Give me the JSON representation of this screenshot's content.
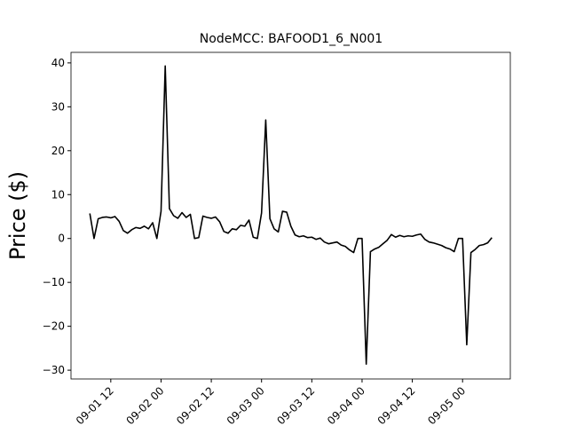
{
  "chart_data": {
    "type": "line",
    "title": "NodeMCC: BAFOOD1_6_N001",
    "ylabel": "Price ($)",
    "x": [
      "09-01 07",
      "09-01 08",
      "09-01 09",
      "09-01 10",
      "09-01 11",
      "09-01 12",
      "09-01 13",
      "09-01 14",
      "09-01 15",
      "09-01 16",
      "09-01 17",
      "09-01 18",
      "09-01 19",
      "09-01 20",
      "09-01 21",
      "09-01 22",
      "09-01 23",
      "09-02 00",
      "09-02 01",
      "09-02 02",
      "09-02 03",
      "09-02 04",
      "09-02 05",
      "09-02 06",
      "09-02 07",
      "09-02 08",
      "09-02 09",
      "09-02 10",
      "09-02 11",
      "09-02 12",
      "09-02 13",
      "09-02 14",
      "09-02 15",
      "09-02 16",
      "09-02 17",
      "09-02 18",
      "09-02 19",
      "09-02 20",
      "09-02 21",
      "09-02 22",
      "09-02 23",
      "09-03 00",
      "09-03 01",
      "09-03 02",
      "09-03 03",
      "09-03 04",
      "09-03 05",
      "09-03 06",
      "09-03 07",
      "09-03 08",
      "09-03 09",
      "09-03 10",
      "09-03 11",
      "09-03 12",
      "09-03 13",
      "09-03 14",
      "09-03 15",
      "09-03 16",
      "09-03 17",
      "09-03 18",
      "09-03 19",
      "09-03 20",
      "09-03 21",
      "09-03 22",
      "09-03 23",
      "09-04 00",
      "09-04 01",
      "09-04 02",
      "09-04 03",
      "09-04 04",
      "09-04 05",
      "09-04 06",
      "09-04 07",
      "09-04 08",
      "09-04 09",
      "09-04 10",
      "09-04 11",
      "09-04 12",
      "09-04 13",
      "09-04 14",
      "09-04 15",
      "09-04 16",
      "09-04 17",
      "09-04 18",
      "09-04 19",
      "09-04 20",
      "09-04 21",
      "09-04 22",
      "09-04 23",
      "09-05 00",
      "09-05 01",
      "09-05 02",
      "09-05 03",
      "09-05 04",
      "09-05 05",
      "09-05 06",
      "09-05 07"
    ],
    "series": [
      {
        "color": "#000000",
        "values": [
          5.7,
          0,
          4.5,
          4.8,
          4.9,
          4.7,
          5.0,
          3.9,
          1.8,
          1.2,
          2.0,
          2.5,
          2.3,
          2.8,
          2.2,
          3.6,
          0,
          6.2,
          39.3,
          6.8,
          5.2,
          4.6,
          5.9,
          4.8,
          5.5,
          0,
          0.2,
          5.1,
          4.8,
          4.6,
          4.9,
          3.8,
          1.6,
          1.2,
          2.2,
          2.0,
          3.0,
          2.8,
          4.2,
          0.3,
          0,
          5.8,
          27.0,
          4.5,
          2.2,
          1.5,
          6.2,
          6.0,
          2.8,
          0.8,
          0.4,
          0.6,
          0.2,
          0.3,
          -0.2,
          0.1,
          -0.8,
          -1.2,
          -1.0,
          -0.8,
          -1.5,
          -1.8,
          -2.6,
          -3.2,
          0,
          0,
          -28.6,
          -3.0,
          -2.4,
          -2.0,
          -1.2,
          -0.4,
          0.9,
          0.3,
          0.7,
          0.4,
          0.6,
          0.5,
          0.8,
          1.0,
          -0.2,
          -0.8,
          -1.0,
          -1.3,
          -1.6,
          -2.1,
          -2.4,
          -3.0,
          0,
          0,
          -24.2,
          -3.2,
          -2.5,
          -1.6,
          -1.4,
          -1.0,
          0.2
        ]
      }
    ],
    "xlim": [
      "09-01 02:30",
      "09-05 11:24"
    ],
    "xticks": [
      "09-01 12",
      "09-02 00",
      "09-02 12",
      "09-03 00",
      "09-03 12",
      "09-04 00",
      "09-04 12",
      "09-05 00"
    ],
    "ylim": [
      -32,
      42.4
    ],
    "yticks": [
      {
        "value": -30,
        "label": "−30"
      },
      {
        "value": -20,
        "label": "−20"
      },
      {
        "value": -10,
        "label": "−10"
      },
      0,
      10,
      20,
      30,
      40
    ],
    "grid": false
  }
}
